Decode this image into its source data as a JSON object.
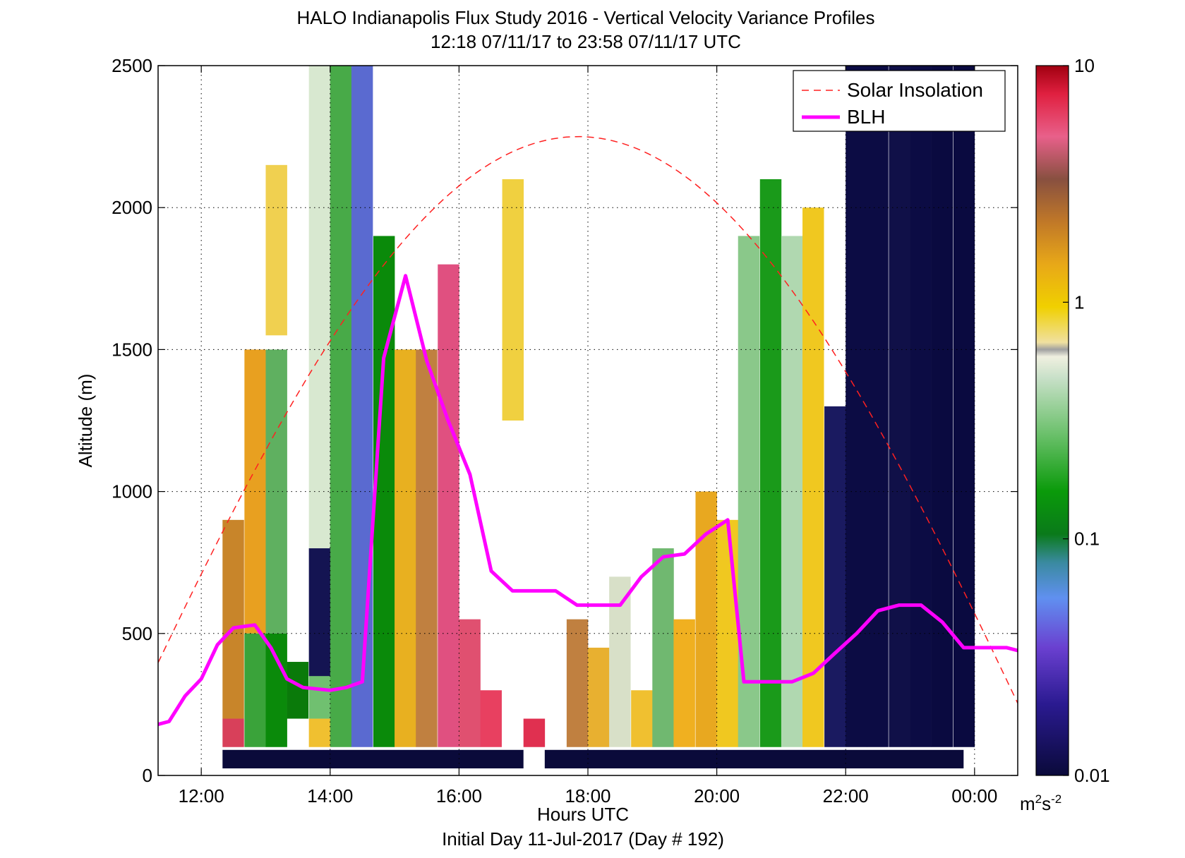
{
  "chart_data": {
    "type": "heatmap",
    "title": "HALO Indianapolis Flux Study 2016 - Vertical Velocity Variance Profiles",
    "subtitle": "12:18 07/11/17 to 23:58 07/11/17  UTC",
    "xlabel": "Hours UTC",
    "xlabel2": "Initial Day 11-Jul-2017 (Day # 192)",
    "ylabel": "Altitude (m)",
    "x_range_hours": [
      11.33,
      24.67
    ],
    "x_ticks": [
      {
        "value": 12,
        "label": "12:00"
      },
      {
        "value": 14,
        "label": "14:00"
      },
      {
        "value": 16,
        "label": "16:00"
      },
      {
        "value": 18,
        "label": "18:00"
      },
      {
        "value": 20,
        "label": "20:00"
      },
      {
        "value": 22,
        "label": "22:00"
      },
      {
        "value": 24,
        "label": "00:00"
      }
    ],
    "ylim": [
      0,
      2500
    ],
    "y_ticks": [
      0,
      500,
      1000,
      1500,
      2000,
      2500
    ],
    "grid": true,
    "colorbar": {
      "scale": "log",
      "range": [
        0.01,
        10
      ],
      "ticks": [
        {
          "value": 0.01,
          "label": "0.01"
        },
        {
          "value": 0.1,
          "label": "0.1"
        },
        {
          "value": 1,
          "label": "1"
        },
        {
          "value": 10,
          "label": "10"
        }
      ],
      "unit_base": "m",
      "unit_sup1": "2",
      "unit_mid": "s",
      "unit_sup2": "-2"
    },
    "legend": {
      "placement": "top-right",
      "entries": [
        {
          "name": "Solar Insolation",
          "color": "#ff2020",
          "style": "dashed"
        },
        {
          "name": "BLH",
          "color": "#ff00ff",
          "style": "solid"
        }
      ]
    },
    "series": [
      {
        "name": "BLH",
        "x": [
          11.33,
          11.5,
          11.75,
          12.0,
          12.25,
          12.5,
          12.83,
          13.08,
          13.33,
          13.58,
          14.0,
          14.25,
          14.5,
          14.83,
          15.17,
          15.5,
          15.83,
          16.17,
          16.5,
          16.83,
          17.17,
          17.5,
          17.83,
          18.17,
          18.5,
          18.83,
          19.17,
          19.5,
          19.83,
          20.17,
          20.42,
          20.83,
          21.17,
          21.5,
          21.83,
          22.17,
          22.5,
          22.83,
          23.17,
          23.5,
          23.83,
          24.17,
          24.5,
          24.67
        ],
        "y": [
          180,
          190,
          280,
          340,
          460,
          520,
          530,
          450,
          340,
          310,
          300,
          310,
          330,
          1470,
          1760,
          1460,
          1250,
          1060,
          720,
          650,
          650,
          650,
          600,
          600,
          600,
          700,
          770,
          780,
          850,
          900,
          330,
          330,
          330,
          360,
          430,
          500,
          580,
          600,
          600,
          540,
          450,
          450,
          450,
          440
        ]
      },
      {
        "name": "Solar Insolation",
        "sunrise": 10.5,
        "sunset": 25.2,
        "peak_hour": 17.85,
        "peak_altitude_m": 2250
      }
    ],
    "no_data_hours": [
      [
        17.0,
        17.33
      ]
    ],
    "cells": [
      {
        "x": 12.33,
        "y0": 200,
        "y1": 900,
        "c": "#c8852a"
      },
      {
        "x": 12.33,
        "y0": 100,
        "y1": 200,
        "c": "#d8405a"
      },
      {
        "x": 12.67,
        "y0": 500,
        "y1": 1500,
        "c": "#e8a020"
      },
      {
        "x": 12.67,
        "y0": 100,
        "y1": 500,
        "c": "#3aa33a"
      },
      {
        "x": 13.0,
        "y0": 500,
        "y1": 1500,
        "c": "#5fb060"
      },
      {
        "x": 13.0,
        "y0": 100,
        "y1": 500,
        "c": "#0a8a0a"
      },
      {
        "x": 13.0,
        "y0": 1550,
        "y1": 2150,
        "c": "#f0d050"
      },
      {
        "x": 13.33,
        "y0": 200,
        "y1": 400,
        "c": "#0a7a0a"
      },
      {
        "x": 13.67,
        "y0": 200,
        "y1": 400,
        "c": "#70c070"
      },
      {
        "x": 13.67,
        "y0": 100,
        "y1": 200,
        "c": "#f0c030"
      },
      {
        "x": 13.67,
        "y0": 800,
        "y1": 2500,
        "c": "#d8e8d0"
      },
      {
        "x": 13.67,
        "y0": 350,
        "y1": 800,
        "c": "#141452"
      },
      {
        "x": 14.0,
        "y0": 100,
        "y1": 2500,
        "c": "#48aa48"
      },
      {
        "x": 14.33,
        "y0": 100,
        "y1": 2500,
        "c": "#5a6ad0"
      },
      {
        "x": 14.67,
        "y0": 100,
        "y1": 1900,
        "c": "#0a8a0a"
      },
      {
        "x": 15.0,
        "y0": 100,
        "y1": 1500,
        "c": "#e8b020"
      },
      {
        "x": 15.33,
        "y0": 100,
        "y1": 1500,
        "c": "#c08040"
      },
      {
        "x": 15.67,
        "y0": 100,
        "y1": 1800,
        "c": "#e05080"
      },
      {
        "x": 16.0,
        "y0": 100,
        "y1": 550,
        "c": "#e05070"
      },
      {
        "x": 16.33,
        "y0": 100,
        "y1": 300,
        "c": "#e84060"
      },
      {
        "x": 16.67,
        "y0": 1250,
        "y1": 2100,
        "c": "#f0d040"
      },
      {
        "x": 17.0,
        "y0": 100,
        "y1": 200,
        "c": "#e03050"
      },
      {
        "x": 17.67,
        "y0": 100,
        "y1": 550,
        "c": "#c08040"
      },
      {
        "x": 18.0,
        "y0": 100,
        "y1": 450,
        "c": "#e8b030"
      },
      {
        "x": 18.33,
        "y0": 100,
        "y1": 700,
        "c": "#d8e0c8"
      },
      {
        "x": 18.67,
        "y0": 100,
        "y1": 300,
        "c": "#f0c030"
      },
      {
        "x": 19.0,
        "y0": 100,
        "y1": 800,
        "c": "#70b870"
      },
      {
        "x": 19.33,
        "y0": 100,
        "y1": 550,
        "c": "#f0b020"
      },
      {
        "x": 19.67,
        "y0": 100,
        "y1": 1000,
        "c": "#e8a820"
      },
      {
        "x": 20.0,
        "y0": 100,
        "y1": 900,
        "c": "#f0c820"
      },
      {
        "x": 20.33,
        "y0": 100,
        "y1": 1900,
        "c": "#8ac88a"
      },
      {
        "x": 20.67,
        "y0": 100,
        "y1": 2100,
        "c": "#1a9a1a"
      },
      {
        "x": 21.0,
        "y0": 100,
        "y1": 1900,
        "c": "#b0d8b0"
      },
      {
        "x": 21.33,
        "y0": 100,
        "y1": 2000,
        "c": "#f0c820"
      },
      {
        "x": 21.67,
        "y0": 100,
        "y1": 1300,
        "c": "#1a1a60"
      },
      {
        "x": 22.0,
        "y0": 100,
        "y1": 2500,
        "c": "#0c0c44"
      },
      {
        "x": 22.33,
        "y0": 100,
        "y1": 2500,
        "c": "#0c0c44"
      },
      {
        "x": 22.67,
        "y0": 100,
        "y1": 2500,
        "c": "#101048"
      },
      {
        "x": 23.0,
        "y0": 100,
        "y1": 2500,
        "c": "#0c0c44"
      },
      {
        "x": 23.33,
        "y0": 100,
        "y1": 2500,
        "c": "#0a0a40"
      },
      {
        "x": 23.67,
        "y0": 100,
        "y1": 2500,
        "c": "#0a0a40"
      }
    ]
  }
}
